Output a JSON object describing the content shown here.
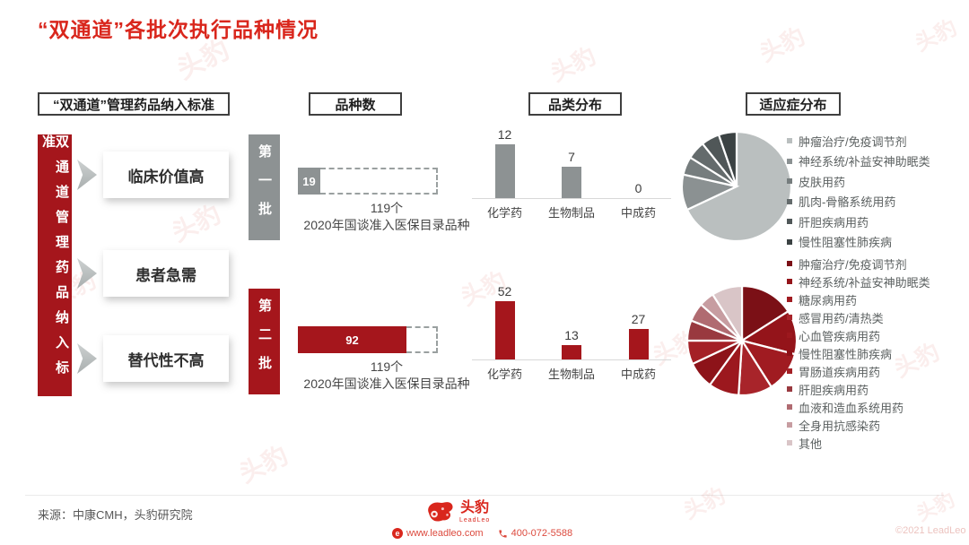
{
  "page": {
    "title": "“双通道”各批次执行品种情况"
  },
  "colors": {
    "brand_red": "#d9261c",
    "dark_red": "#a5161c",
    "gray": "#8d9293"
  },
  "headers": {
    "criteria": "“双通道”管理药品纳入标准",
    "variety_count": "品种数",
    "category_dist": "品类分布",
    "indication_dist": "适应症分布"
  },
  "criteria": {
    "vertical_label": "双通道管理药品纳入标准",
    "items": [
      "临床价值高",
      "患者急需",
      "替代性不高"
    ]
  },
  "batches": {
    "first": "第一批",
    "second": "第二批"
  },
  "chart_data": [
    {
      "id": "batch1-variety-count",
      "type": "bar",
      "style": "progress",
      "title": "品种数（第一批）",
      "value": 19,
      "max": 119,
      "max_label": "119个",
      "note": "2020年国谈准入医保目录品种",
      "color": "#8d9293"
    },
    {
      "id": "batch2-variety-count",
      "type": "bar",
      "style": "progress",
      "title": "品种数（第二批）",
      "value": 92,
      "max": 119,
      "max_label": "119个",
      "note": "2020年国谈准入医保目录品种",
      "color": "#a5161c"
    },
    {
      "id": "batch1-category",
      "type": "bar",
      "title": "品类分布（第一批）",
      "categories": [
        "化学药",
        "生物制品",
        "中成药"
      ],
      "values": [
        12,
        7,
        0
      ],
      "ylim": [
        0,
        12
      ],
      "color": "#8d9293",
      "grid": false
    },
    {
      "id": "batch2-category",
      "type": "bar",
      "title": "品类分布（第二批）",
      "categories": [
        "化学药",
        "生物制品",
        "中成药"
      ],
      "values": [
        52,
        13,
        27
      ],
      "ylim": [
        0,
        52
      ],
      "color": "#a5161c",
      "grid": false
    },
    {
      "id": "batch1-indication",
      "type": "pie",
      "title": "适应症分布（第一批）",
      "value_unit": "percent_estimated_from_pie",
      "labels": [
        "肿瘤治疗/免疫调节剂",
        "神经系统/补益安神助眠类",
        "皮肤用药",
        "肌肉-骨骼系统用药",
        "肝胆疾病用药",
        "慢性阻塞性肺疾病"
      ],
      "values": [
        68,
        10.5,
        5.4,
        5.4,
        5.4,
        5.3
      ],
      "colors": [
        "#babfbf",
        "#8b9192",
        "#767d7e",
        "#646b6c",
        "#505758",
        "#3b4243"
      ],
      "legend_position": "right"
    },
    {
      "id": "batch2-indication",
      "type": "pie",
      "title": "适应症分布（第二批）",
      "value_unit": "percent_estimated_from_pie",
      "labels": [
        "肿瘤治疗/免疫调节剂",
        "神经系统/补益安神助眠类",
        "糖尿病用药",
        "感冒用药/清热类",
        "心血管疾病用药",
        "慢性阻塞性肺疾病",
        "胃肠道疾病用药",
        "肝胆疾病用药",
        "血液和造血系统用药",
        "全身用抗感染药",
        "其他"
      ],
      "values": [
        16,
        13,
        12,
        10,
        9,
        8,
        7,
        6,
        5.5,
        4.5,
        9
      ],
      "colors": [
        "#7b1016",
        "#94141a",
        "#a01b21",
        "#a8242a",
        "#9c181e",
        "#8d1319",
        "#a42026",
        "#99393f",
        "#b06b71",
        "#c79da1",
        "#d9c5c7"
      ],
      "legend_position": "right"
    }
  ],
  "footer": {
    "source": "来源：中康CMH，头豹研究院",
    "logo_text": "头豹",
    "logo_subtext": "LeadLeo",
    "website": "www.leadleo.com",
    "phone": "400-072-5588",
    "copyright": "©2021 LeadLeo"
  },
  "watermark": {
    "glyph": "头豹"
  }
}
